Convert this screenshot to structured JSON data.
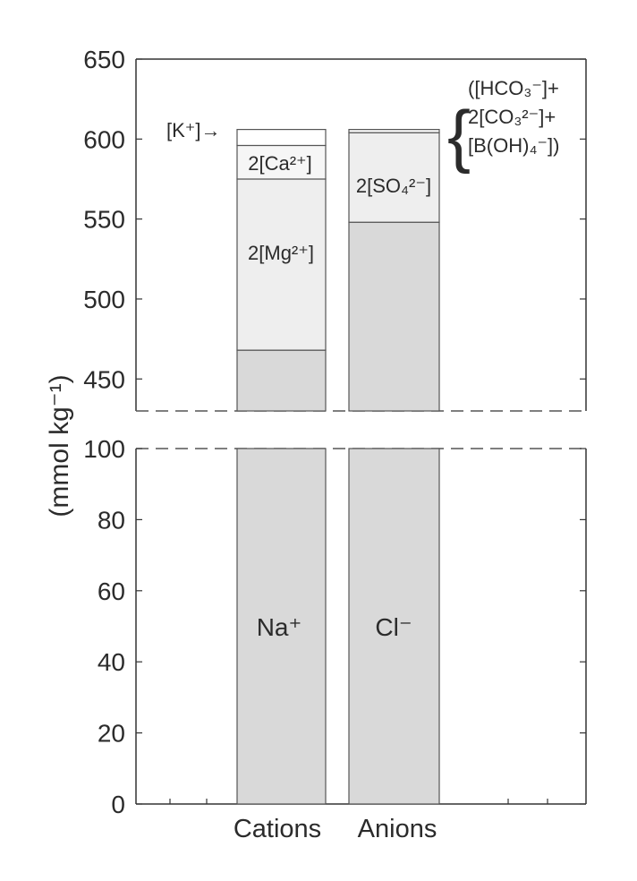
{
  "chart_data": {
    "type": "bar",
    "stacked": true,
    "broken_y_axis": true,
    "ylabel": "(mmol kg⁻¹)",
    "upper_panel": {
      "ylim": [
        430,
        650
      ],
      "yticks": [
        450,
        500,
        550,
        600,
        650
      ]
    },
    "lower_panel": {
      "ylim": [
        0,
        100
      ],
      "yticks": [
        0,
        20,
        40,
        60,
        80,
        100
      ]
    },
    "categories": [
      "Cations",
      "Anions"
    ],
    "stacks": {
      "Cations": [
        {
          "name": "Na⁺",
          "value": 468
        },
        {
          "name": "2[Mg²⁺]",
          "value": 107
        },
        {
          "name": "2[Ca²⁺]",
          "value": 21
        },
        {
          "name": "[K⁺]",
          "value": 10
        }
      ],
      "Anions": [
        {
          "name": "Cl⁻",
          "value": 548
        },
        {
          "name": "2[SO₄²⁻]",
          "value": 56
        },
        {
          "name": "([HCO₃⁻]+2[CO₃²⁻]+[B(OH)₄⁻])",
          "value": 2
        }
      ]
    },
    "grid": false,
    "colors": {
      "Na/Cl": "#d9d9d9",
      "Mg/SO4": "#efefef",
      "Ca": "#f6f6f6",
      "K": "#ffffff"
    }
  },
  "labels": {
    "k_arrow": "[K⁺]→",
    "ca": "2[Ca²⁺]",
    "mg": "2[Mg²⁺]",
    "na": "Na⁺",
    "cl": "Cl⁻",
    "so4": "2[SO₄²⁻]",
    "carb_line1": "([HCO₃⁻]+",
    "carb_line2": "2[CO₃²⁻]+",
    "carb_line3": "[B(OH)₄⁻])",
    "brace": "{"
  },
  "axis": {
    "ylabel": "(mmol kg⁻¹)",
    "xcat_cations": "Cations",
    "xcat_anions": "Anions"
  }
}
